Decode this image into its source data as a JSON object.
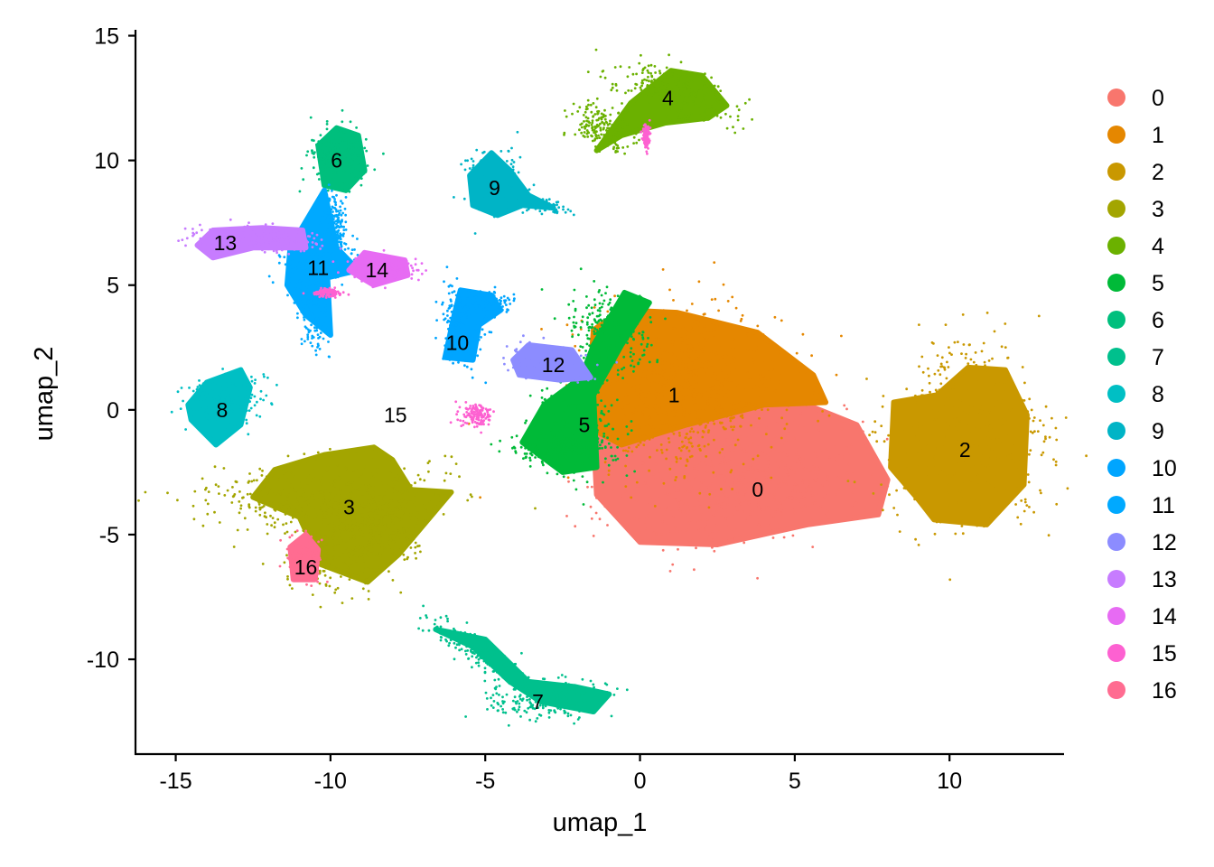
{
  "chart_data": {
    "type": "scatter",
    "title": "",
    "xlabel": "umap_1",
    "ylabel": "umap_2",
    "xlim": [
      -16.3,
      13.7
    ],
    "ylim": [
      -13.8,
      15.2
    ],
    "xticks": [
      -15,
      -10,
      -5,
      0,
      5,
      10
    ],
    "yticks": [
      -10,
      -5,
      0,
      5,
      10,
      15
    ],
    "xtick_labels": [
      "-15",
      "-10",
      "-5",
      "0",
      "5",
      "10"
    ],
    "ytick_labels": [
      "-10",
      "-5",
      "0",
      "5",
      "10",
      "15"
    ],
    "grid": false,
    "legend_position": "right",
    "clusters": [
      {
        "name": "0",
        "color": "#F8766D",
        "label_pos": [
          3.8,
          -3.2
        ],
        "blobs": [
          [
            3.2,
            -2.8,
            3.6,
            2.2,
            0.25
          ]
        ],
        "outline": [
          [
            0,
            -5.3
          ],
          [
            -1.4,
            -3.4
          ],
          [
            -1.5,
            -1.0
          ],
          [
            1.5,
            0.2
          ],
          [
            5.0,
            0.4
          ],
          [
            7.0,
            -0.6
          ],
          [
            8.0,
            -2.8
          ],
          [
            7.7,
            -4.2
          ],
          [
            5.4,
            -4.6
          ],
          [
            2.5,
            -5.4
          ]
        ]
      },
      {
        "name": "1",
        "color": "#E58700",
        "label_pos": [
          1.1,
          0.6
        ],
        "blobs": [
          [
            1.3,
            0.8,
            3.0,
            2.8,
            0
          ]
        ],
        "outline": [
          [
            -1.5,
            3.2
          ],
          [
            -0.6,
            4.0
          ],
          [
            1.2,
            3.9
          ],
          [
            3.8,
            3.1
          ],
          [
            5.6,
            1.4
          ],
          [
            6.0,
            0.3
          ],
          [
            4.0,
            0.2
          ],
          [
            1.5,
            -0.6
          ],
          [
            -0.6,
            -1.4
          ],
          [
            -1.5,
            -0.8
          ],
          [
            -1.6,
            1.6
          ]
        ]
      },
      {
        "name": "2",
        "color": "#C99800",
        "label_pos": [
          10.5,
          -1.6
        ],
        "blobs": [
          [
            10.6,
            -1.1,
            2.2,
            3.2,
            0
          ]
        ],
        "outline": [
          [
            9.5,
            -4.4
          ],
          [
            11.2,
            -4.6
          ],
          [
            12.4,
            -3.0
          ],
          [
            12.5,
            -0.2
          ],
          [
            11.8,
            1.6
          ],
          [
            10.6,
            1.7
          ],
          [
            9.6,
            0.6
          ],
          [
            8.2,
            0.3
          ],
          [
            8.1,
            -2.3
          ],
          [
            9.0,
            -3.6
          ]
        ]
      },
      {
        "name": "3",
        "color": "#A3A500",
        "label_pos": [
          -9.4,
          -3.9
        ],
        "blobs": [
          [
            -10.2,
            -3.4,
            3.3,
            1.2,
            0.05
          ],
          [
            -9.6,
            -5.3,
            1.6,
            1.7,
            0
          ],
          [
            -8.1,
            -4.6,
            1.2,
            1.0,
            0
          ]
        ],
        "outline": [
          [
            -12.5,
            -3.5
          ],
          [
            -11.8,
            -2.4
          ],
          [
            -10.2,
            -1.8
          ],
          [
            -8.6,
            -1.5
          ],
          [
            -8.0,
            -2.0
          ],
          [
            -7.4,
            -3.2
          ],
          [
            -6.1,
            -3.3
          ],
          [
            -7.8,
            -5.8
          ],
          [
            -8.8,
            -6.9
          ],
          [
            -10.3,
            -6.2
          ],
          [
            -11.0,
            -4.3
          ]
        ]
      },
      {
        "name": "4",
        "color": "#6BB100",
        "label_pos": [
          0.9,
          12.5
        ],
        "blobs": [
          [
            1.1,
            12.8,
            1.9,
            0.8,
            -0.45
          ],
          [
            -1.2,
            11.3,
            1.1,
            0.6,
            -0.55
          ]
        ],
        "outline": [
          [
            -1.4,
            10.4
          ],
          [
            -0.3,
            12.3
          ],
          [
            1.0,
            13.6
          ],
          [
            2.0,
            13.4
          ],
          [
            2.8,
            12.2
          ],
          [
            2.2,
            11.7
          ],
          [
            0.8,
            11.5
          ],
          [
            -0.6,
            11.0
          ]
        ]
      },
      {
        "name": "5",
        "color": "#00BA38",
        "label_pos": [
          -1.8,
          -0.6
        ],
        "blobs": [
          [
            -2.1,
            -0.8,
            1.3,
            1.6,
            0
          ],
          [
            -1.0,
            3.2,
            1.1,
            1.5,
            0.2
          ],
          [
            -2.6,
            -1.6,
            1.4,
            0.6,
            0
          ]
        ],
        "outline": [
          [
            -3.8,
            -1.3
          ],
          [
            -3.1,
            0.2
          ],
          [
            -1.9,
            1.3
          ],
          [
            -1.5,
            2.6
          ],
          [
            -0.5,
            4.7
          ],
          [
            0.3,
            4.3
          ],
          [
            -0.6,
            2.6
          ],
          [
            -1.5,
            0.6
          ],
          [
            -1.4,
            -2.3
          ],
          [
            -2.5,
            -2.5
          ]
        ]
      },
      {
        "name": "6",
        "color": "#00BF7D",
        "label_pos": [
          -9.8,
          10.0
        ],
        "blobs": [
          [
            -9.7,
            10.2,
            0.9,
            1.1,
            0
          ]
        ],
        "outline": [
          [
            -10.2,
            9.0
          ],
          [
            -10.4,
            10.6
          ],
          [
            -9.8,
            11.3
          ],
          [
            -9.1,
            11.0
          ],
          [
            -8.9,
            9.6
          ],
          [
            -9.5,
            8.8
          ]
        ]
      },
      {
        "name": "7",
        "color": "#00C08D",
        "label_pos": [
          -3.3,
          -11.7
        ],
        "blobs": [
          [
            -3.0,
            -11.6,
            1.8,
            0.75,
            0
          ],
          [
            -5.3,
            -9.6,
            1.8,
            0.45,
            -0.65
          ]
        ],
        "outline": [
          [
            -6.6,
            -8.8
          ],
          [
            -5.4,
            -9.5
          ],
          [
            -4.2,
            -10.9
          ],
          [
            -3.2,
            -11.7
          ],
          [
            -1.5,
            -12.1
          ],
          [
            -1.0,
            -11.4
          ],
          [
            -2.1,
            -11.1
          ],
          [
            -3.6,
            -10.9
          ],
          [
            -5.0,
            -9.2
          ]
        ]
      },
      {
        "name": "8",
        "color": "#00BFC4",
        "label_pos": [
          -13.5,
          0.0
        ],
        "blobs": [
          [
            -13.5,
            0.3,
            1.2,
            1.0,
            0.3
          ]
        ],
        "outline": [
          [
            -14.6,
            0.2
          ],
          [
            -14.0,
            1.1
          ],
          [
            -12.9,
            1.6
          ],
          [
            -12.6,
            0.9
          ],
          [
            -12.9,
            -0.6
          ],
          [
            -13.7,
            -1.4
          ],
          [
            -14.5,
            -0.4
          ]
        ]
      },
      {
        "name": "9",
        "color": "#00B4C6",
        "label_pos": [
          -4.7,
          8.9
        ],
        "blobs": [
          [
            -4.7,
            9.0,
            0.9,
            1.1,
            0
          ],
          [
            -3.5,
            8.3,
            1.0,
            0.25,
            -0.25
          ]
        ],
        "outline": [
          [
            -5.4,
            8.2
          ],
          [
            -5.5,
            9.4
          ],
          [
            -4.8,
            10.3
          ],
          [
            -4.2,
            9.6
          ],
          [
            -3.6,
            8.6
          ],
          [
            -2.8,
            8.1
          ],
          [
            -3.8,
            8.2
          ],
          [
            -4.6,
            7.8
          ]
        ]
      },
      {
        "name": "10",
        "color": "#00A5FF",
        "label_pos": [
          -5.9,
          2.7
        ],
        "blobs": [
          [
            -5.8,
            3.3,
            0.6,
            1.5,
            0.1
          ],
          [
            -5.0,
            4.2,
            0.8,
            0.4,
            0
          ]
        ],
        "outline": [
          [
            -6.3,
            2.1
          ],
          [
            -6.0,
            3.8
          ],
          [
            -5.8,
            4.8
          ],
          [
            -4.8,
            4.6
          ],
          [
            -4.5,
            4.0
          ],
          [
            -5.2,
            3.4
          ],
          [
            -5.4,
            2.0
          ]
        ]
      },
      {
        "name": "11",
        "color": "#00A9FF",
        "label_pos": [
          -10.4,
          5.7
        ],
        "blobs": [
          [
            -10.5,
            5.8,
            1.1,
            0.8,
            0
          ],
          [
            -10.6,
            4.0,
            0.4,
            1.4,
            0.15
          ],
          [
            -9.9,
            7.6,
            0.4,
            1.0,
            0.2
          ]
        ],
        "outline": [
          [
            -11.3,
            6.5
          ],
          [
            -10.2,
            8.8
          ],
          [
            -9.8,
            6.5
          ],
          [
            -9.1,
            5.6
          ],
          [
            -10.1,
            5.3
          ],
          [
            -10.0,
            3.0
          ],
          [
            -10.8,
            3.8
          ],
          [
            -11.4,
            5.0
          ]
        ]
      },
      {
        "name": "12",
        "color": "#8C8CFF",
        "label_pos": [
          -2.8,
          1.8
        ],
        "blobs": [
          [
            -3.0,
            1.9,
            1.3,
            0.6,
            -0.1
          ]
        ],
        "outline": [
          [
            -4.1,
            2.0
          ],
          [
            -3.6,
            2.6
          ],
          [
            -2.2,
            2.4
          ],
          [
            -1.6,
            1.3
          ],
          [
            -2.6,
            1.2
          ],
          [
            -3.9,
            1.4
          ]
        ]
      },
      {
        "name": "13",
        "color": "#C77CFF",
        "label_pos": [
          -13.4,
          6.7
        ],
        "blobs": [
          [
            -13.0,
            6.9,
            1.3,
            0.45,
            0
          ],
          [
            -11.5,
            6.8,
            1.0,
            0.35,
            0
          ]
        ],
        "outline": [
          [
            -14.3,
            6.6
          ],
          [
            -13.8,
            7.2
          ],
          [
            -12.2,
            7.3
          ],
          [
            -10.9,
            7.2
          ],
          [
            -10.8,
            6.5
          ],
          [
            -12.5,
            6.5
          ],
          [
            -13.8,
            6.1
          ]
        ]
      },
      {
        "name": "14",
        "color": "#E76BF3",
        "label_pos": [
          -8.5,
          5.6
        ],
        "blobs": [
          [
            -8.4,
            5.7,
            1.0,
            0.5,
            0
          ]
        ],
        "outline": [
          [
            -9.4,
            5.6
          ],
          [
            -8.9,
            6.3
          ],
          [
            -7.6,
            6.0
          ],
          [
            -7.5,
            5.4
          ],
          [
            -8.6,
            5.0
          ]
        ]
      },
      {
        "name": "15",
        "color": "#FD61D1",
        "label_pos": [
          -7.9,
          -0.2
        ],
        "blobs": [
          [
            -5.3,
            -0.2,
            0.5,
            0.4,
            -0.6
          ],
          [
            0.2,
            10.9,
            0.1,
            0.5,
            0
          ],
          [
            -10.1,
            4.7,
            0.4,
            0.15,
            0
          ]
        ],
        "outline": []
      },
      {
        "name": "16",
        "color": "#FF6C91",
        "label_pos": [
          -10.8,
          -6.3
        ],
        "blobs": [
          [
            -10.9,
            -6.0,
            0.5,
            0.75,
            0
          ]
        ],
        "outline": [
          [
            -11.3,
            -5.5
          ],
          [
            -10.8,
            -5.0
          ],
          [
            -10.4,
            -5.6
          ],
          [
            -10.5,
            -6.8
          ],
          [
            -11.2,
            -6.8
          ]
        ]
      }
    ],
    "legend": [
      "0",
      "1",
      "2",
      "3",
      "4",
      "5",
      "6",
      "7",
      "8",
      "9",
      "10",
      "11",
      "12",
      "13",
      "14",
      "15",
      "16"
    ]
  }
}
